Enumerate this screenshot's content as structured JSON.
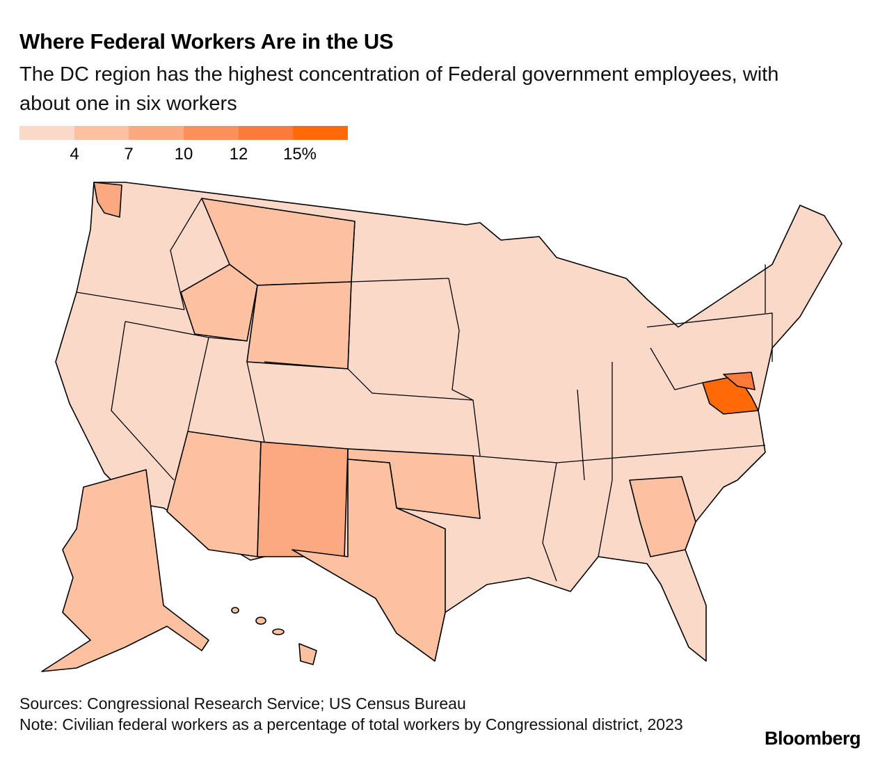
{
  "title": "Where Federal Workers Are in the US",
  "subtitle": "The DC region has the highest concentration of Federal government employees, with about one in six workers",
  "legend": {
    "colors": [
      "#fad9c8",
      "#fcc1a0",
      "#fca982",
      "#fc8f5a",
      "#fc7a3a",
      "#fd6a07"
    ],
    "ticks": [
      "4",
      "7",
      "10",
      "12",
      "15%"
    ]
  },
  "map": {
    "regions": [
      {
        "name": "DC region (VA/MD)",
        "class": 5
      },
      {
        "name": "Washington (Puget Sound)",
        "class": 2
      },
      {
        "name": "New Mexico",
        "class": 2
      },
      {
        "name": "Montana",
        "class": 1
      },
      {
        "name": "Wyoming",
        "class": 1
      },
      {
        "name": "Idaho",
        "class": 1
      },
      {
        "name": "Oklahoma",
        "class": 1
      },
      {
        "name": "Texas (west)",
        "class": 1
      },
      {
        "name": "Alaska",
        "class": 1
      },
      {
        "name": "Georgia",
        "class": 1
      },
      {
        "name": "Arizona",
        "class": 1
      }
    ]
  },
  "footer": {
    "sources": "Sources: Congressional Research Service; US Census Bureau",
    "note": "Note: Civilian federal workers as a percentage of total workers by Congressional district, 2023"
  },
  "brand": "Bloomberg"
}
